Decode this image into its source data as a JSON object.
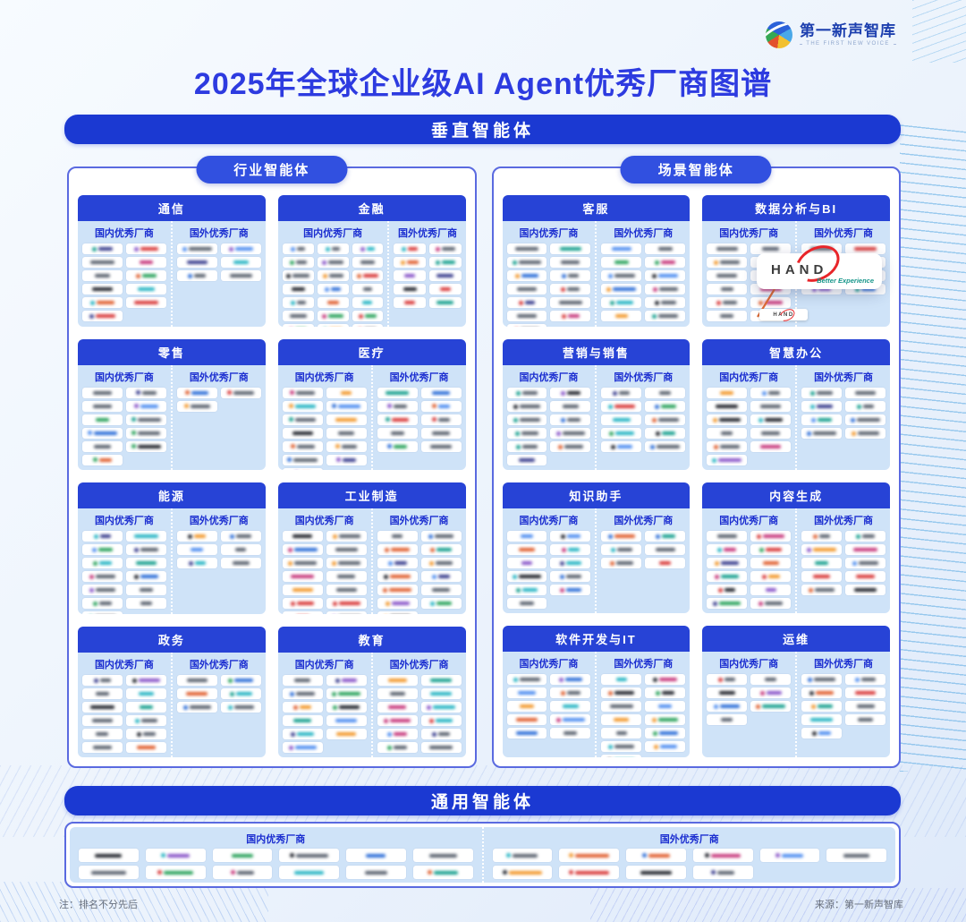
{
  "brand": {
    "name": "第一新声智库",
    "tagline": "THE FIRST NEW VOICE"
  },
  "title": "2025年全球企业级AI Agent优秀厂商图谱",
  "sections": {
    "vertical": "垂直智能体",
    "general": "通用智能体"
  },
  "labels": {
    "domestic": "国内优秀厂商",
    "foreign": "国外优秀厂商"
  },
  "panels": [
    {
      "id": "industry",
      "pill": "行业智能体",
      "cards": [
        {
          "title": "通信",
          "domestic": {
            "cols": 2,
            "count": 11
          },
          "foreign": {
            "cols": 2,
            "count": 6
          }
        },
        {
          "title": "金融",
          "domestic": {
            "cols": 3,
            "count": 21
          },
          "foreign": {
            "cols": 2,
            "count": 10
          }
        },
        {
          "title": "零售",
          "domestic": {
            "cols": 2,
            "count": 11
          },
          "foreign": {
            "cols": 2,
            "count": 3
          }
        },
        {
          "title": "医疗",
          "domestic": {
            "cols": 2,
            "count": 13
          },
          "foreign": {
            "cols": 2,
            "count": 10
          }
        },
        {
          "title": "能源",
          "domestic": {
            "cols": 2,
            "count": 13
          },
          "foreign": {
            "cols": 2,
            "count": 6
          }
        },
        {
          "title": "工业制造",
          "domestic": {
            "cols": 2,
            "count": 14
          },
          "foreign": {
            "cols": 2,
            "count": 13
          }
        },
        {
          "title": "政务",
          "domestic": {
            "cols": 2,
            "count": 12
          },
          "foreign": {
            "cols": 2,
            "count": 6
          }
        },
        {
          "title": "教育",
          "domestic": {
            "cols": 2,
            "count": 11
          },
          "foreign": {
            "cols": 2,
            "count": 12
          }
        }
      ]
    },
    {
      "id": "scenario",
      "pill": "场景智能体",
      "cards": [
        {
          "title": "客服",
          "domestic": {
            "cols": 2,
            "count": 13
          },
          "foreign": {
            "cols": 2,
            "count": 12
          }
        },
        {
          "title": "数据分析与BI",
          "domestic": {
            "cols": 2,
            "count": 12
          },
          "foreign": {
            "cols": 2,
            "count": 8
          }
        },
        {
          "title": "营销与销售",
          "domestic": {
            "cols": 2,
            "count": 11
          },
          "foreign": {
            "cols": 2,
            "count": 10
          }
        },
        {
          "title": "智慧办公",
          "domestic": {
            "cols": 2,
            "count": 11
          },
          "foreign": {
            "cols": 2,
            "count": 8
          }
        },
        {
          "title": "知识助手",
          "domestic": {
            "cols": 2,
            "count": 11
          },
          "foreign": {
            "cols": 2,
            "count": 6
          }
        },
        {
          "title": "内容生成",
          "domestic": {
            "cols": 2,
            "count": 12
          },
          "foreign": {
            "cols": 2,
            "count": 10
          }
        },
        {
          "title": "软件开发与IT",
          "domestic": {
            "cols": 2,
            "count": 10
          },
          "foreign": {
            "cols": 2,
            "count": 13
          }
        },
        {
          "title": "运维",
          "domestic": {
            "cols": 2,
            "count": 7
          },
          "foreign": {
            "cols": 2,
            "count": 9
          }
        }
      ]
    }
  ],
  "general": {
    "domestic": {
      "cols": 6,
      "count": 12
    },
    "foreign": {
      "cols": 6,
      "count": 10
    }
  },
  "highlight": {
    "card": "数据分析与BI",
    "vendor": "HAND",
    "tagline": "Better Experience"
  },
  "footer": {
    "note": "注：排名不分先后",
    "source": "来源：第一新声智库"
  },
  "colors": {
    "title_blue": "#2d3be0",
    "banner_blue": "#1b39d2",
    "card_header_blue": "#2743d6",
    "pill_blue": "#3150e0",
    "label_blue": "#1b2ed0",
    "card_body_blue": "#cfe3f8",
    "panel_border_blue": "#5a6ae0",
    "hand_red": "#e8252a",
    "hand_teal": "#17968a",
    "palette": [
      "#d93a3a",
      "#2e6fd8",
      "#2aa35c",
      "#f2992e",
      "#27b5c4",
      "#3b3f8f",
      "#8a56c9",
      "#e06030",
      "#17a08f",
      "#23262e",
      "#4f8ef0",
      "#c7397c"
    ]
  }
}
